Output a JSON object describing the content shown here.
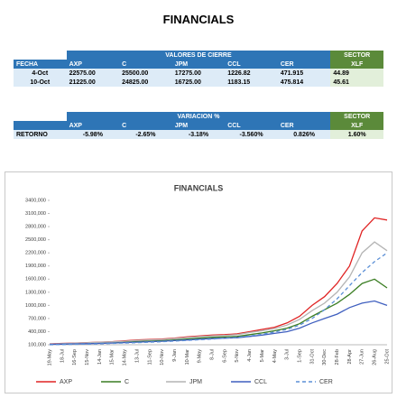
{
  "title": "FINANCIALS",
  "closing_table": {
    "group_header": "VALORES DE CIERRE",
    "sector_header": "SECTOR",
    "columns": [
      "FECHA",
      "AXP",
      "C",
      "JPM",
      "CCL",
      "CER",
      "XLF"
    ],
    "rows": [
      [
        "4-Oct",
        "22575.00",
        "25500.00",
        "17275.00",
        "1226.82",
        "471.915",
        "44.89"
      ],
      [
        "10-Oct",
        "21225.00",
        "24825.00",
        "16725.00",
        "1183.15",
        "475.814",
        "45.61"
      ]
    ]
  },
  "variation_table": {
    "group_header": "VARIACION %",
    "sector_header": "SECTOR",
    "columns": [
      "AXP",
      "C",
      "JPM",
      "CCL",
      "CER",
      "XLF"
    ],
    "row_label": "RETORNO",
    "row": [
      "-5.98%",
      "-2.65%",
      "-3.18%",
      "-3.560%",
      "0.826%",
      "1.60%"
    ]
  },
  "chart_data": {
    "type": "line",
    "title": "FINANCIALS",
    "categories": [
      "19-May",
      "18-Jul",
      "16-Sep",
      "15-Nov",
      "14-Jan",
      "15-Mar",
      "14-May",
      "13-Jul",
      "11-Sep",
      "10-Nov",
      "9-Jan",
      "10-Mar",
      "9-May",
      "8-Jul",
      "6-Sep",
      "5-Nov",
      "4-Jan",
      "5-Mar",
      "4-May",
      "3-Jul",
      "1-Sep",
      "31-Oct",
      "30-Dec",
      "28-Feb",
      "28-Apr",
      "27-Jun",
      "26-Aug",
      "25-Oct"
    ],
    "ylim": [
      100000,
      3400000
    ],
    "yticks": [
      {
        "value": 100000,
        "label": "100,000"
      },
      {
        "value": 400000,
        "label": "400,000"
      },
      {
        "value": 700000,
        "label": "700,000"
      },
      {
        "value": 1000000,
        "label": "1000,000"
      },
      {
        "value": 1300000,
        "label": "1300,000"
      },
      {
        "value": 1600000,
        "label": "1600,000"
      },
      {
        "value": 1900000,
        "label": "1900,000"
      },
      {
        "value": 2200000,
        "label": "2200,000"
      },
      {
        "value": 2500000,
        "label": "2500,000"
      },
      {
        "value": 2800000,
        "label": "2800,000"
      },
      {
        "value": 3100000,
        "label": "3100,000"
      },
      {
        "value": 3400000,
        "label": "3400,000"
      }
    ],
    "series": [
      {
        "name": "AXP",
        "color": "#e02424",
        "style": "solid",
        "values": [
          120000,
          130000,
          140000,
          150000,
          160000,
          170000,
          190000,
          210000,
          220000,
          230000,
          250000,
          280000,
          300000,
          320000,
          330000,
          350000,
          400000,
          450000,
          500000,
          600000,
          750000,
          1000000,
          1200000,
          1500000,
          1900000,
          2700000,
          3000000,
          2950000
        ]
      },
      {
        "name": "C",
        "color": "#3a7d22",
        "style": "solid",
        "values": [
          110000,
          120000,
          125000,
          130000,
          140000,
          150000,
          160000,
          175000,
          185000,
          195000,
          210000,
          230000,
          250000,
          270000,
          280000,
          290000,
          330000,
          370000,
          420000,
          480000,
          580000,
          750000,
          900000,
          1050000,
          1250000,
          1500000,
          1600000,
          1400000
        ]
      },
      {
        "name": "JPM",
        "color": "#b4b4b4",
        "style": "solid",
        "values": [
          115000,
          125000,
          135000,
          145000,
          155000,
          165000,
          180000,
          200000,
          210000,
          220000,
          240000,
          265000,
          285000,
          305000,
          315000,
          330000,
          380000,
          420000,
          470000,
          550000,
          680000,
          880000,
          1050000,
          1300000,
          1650000,
          2200000,
          2450000,
          2250000
        ]
      },
      {
        "name": "CCL",
        "color": "#3f5fbf",
        "style": "solid",
        "values": [
          110000,
          115000,
          120000,
          125000,
          130000,
          140000,
          150000,
          160000,
          170000,
          180000,
          195000,
          210000,
          225000,
          240000,
          250000,
          260000,
          290000,
          320000,
          360000,
          400000,
          480000,
          600000,
          700000,
          800000,
          950000,
          1050000,
          1100000,
          1000000
        ]
      },
      {
        "name": "CER",
        "color": "#5b8fd6",
        "style": "dashed",
        "values": [
          100000,
          105000,
          110000,
          115000,
          120000,
          130000,
          140000,
          150000,
          160000,
          170000,
          185000,
          200000,
          215000,
          230000,
          250000,
          270000,
          300000,
          340000,
          390000,
          450000,
          550000,
          700000,
          900000,
          1150000,
          1450000,
          1750000,
          2000000,
          2200000
        ]
      }
    ]
  }
}
